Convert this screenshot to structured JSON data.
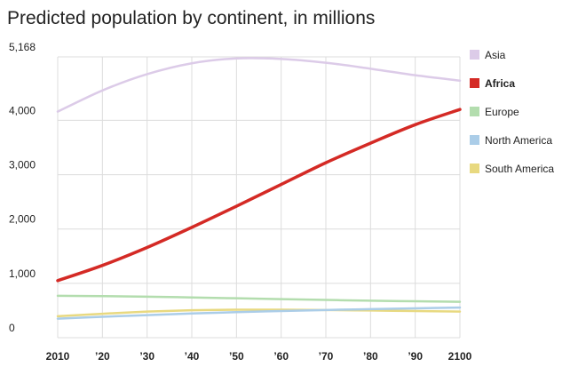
{
  "chart_data": {
    "type": "line",
    "title": "Predicted population by continent, in millions",
    "x": [
      2010,
      2020,
      2030,
      2040,
      2050,
      2060,
      2070,
      2080,
      2090,
      2100
    ],
    "series": [
      {
        "name": "Asia",
        "color": "#dccbe8",
        "values": [
          4160,
          4550,
          4850,
          5050,
          5140,
          5130,
          5060,
          4950,
          4830,
          4730
        ]
      },
      {
        "name": "Africa",
        "color": "#d42a25",
        "emphasis": true,
        "values": [
          1050,
          1330,
          1660,
          2030,
          2420,
          2820,
          3220,
          3580,
          3920,
          4200
        ]
      },
      {
        "name": "Europe",
        "color": "#b3ddae",
        "values": [
          770,
          765,
          755,
          740,
          725,
          710,
          695,
          680,
          670,
          660
        ]
      },
      {
        "name": "North America",
        "color": "#abcde8",
        "values": [
          350,
          385,
          415,
          445,
          470,
          490,
          510,
          525,
          540,
          555
        ]
      },
      {
        "name": "South America",
        "color": "#e8d980",
        "values": [
          395,
          440,
          480,
          505,
          515,
          515,
          510,
          500,
          490,
          480
        ]
      }
    ],
    "xlim": [
      2010,
      2100
    ],
    "xticks": [
      2010,
      {
        "value": 2020,
        "label": "’20"
      },
      {
        "value": 2030,
        "label": "’30"
      },
      {
        "value": 2040,
        "label": "’40"
      },
      {
        "value": 2050,
        "label": "’50"
      },
      {
        "value": 2060,
        "label": "’60"
      },
      {
        "value": 2070,
        "label": "’70"
      },
      {
        "value": 2080,
        "label": "’80"
      },
      {
        "value": 2090,
        "label": "’90"
      },
      2100
    ],
    "ylim": [
      0,
      5168
    ],
    "yticks": [
      0,
      {
        "value": 1000,
        "label": "1,000"
      },
      {
        "value": 2000,
        "label": "2,000"
      },
      {
        "value": 3000,
        "label": "3,000"
      },
      {
        "value": 4000,
        "label": "4,000"
      },
      {
        "value": 5168,
        "label": "5,168"
      }
    ],
    "grid": true,
    "legend": "right"
  }
}
